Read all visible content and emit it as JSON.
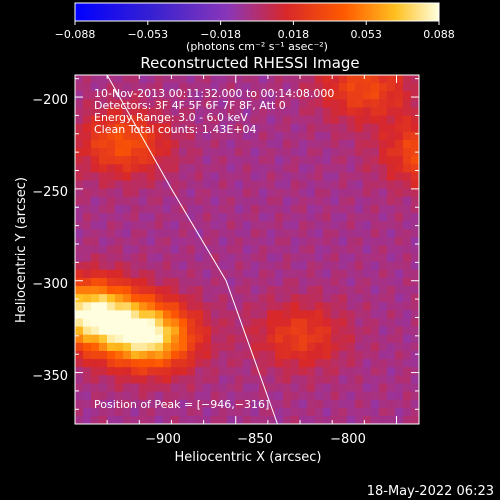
{
  "colorbar": {
    "ticks": [
      "−0.088",
      "−0.053",
      "−0.018",
      "0.018",
      "0.053",
      "0.088"
    ],
    "unit_label": "(photons cm⁻² s⁻¹ asec⁻²)",
    "range": [
      -0.088,
      0.088
    ]
  },
  "chart_data": {
    "type": "heatmap",
    "title": "Reconstructed RHESSI Image",
    "xlabel": "Heliocentric X (arcsec)",
    "ylabel": "Heliocentric Y (arcsec)",
    "xlim": [
      -950,
      -843
    ],
    "ylim": [
      -378,
      -188
    ],
    "x_ticks": [
      -900,
      -850,
      -800
    ],
    "x_tick_labels": [
      "−900",
      "−850",
      "−800"
    ],
    "y_ticks": [
      -200,
      -250,
      -300,
      -350
    ],
    "y_tick_labels": [
      "−200",
      "−250",
      "−300",
      "−350"
    ],
    "annotations": [
      "10-Nov-2013 00:11:32.000 to 00:14:08.000",
      "Detectors: 3F 4F 5F 6F 7F 8F, Att 0",
      "Energy Range: 3.0 - 6.0 keV",
      "Clean     Total counts: 1.43E+04"
    ],
    "peak_label": "Position of Peak = [−946,−316]",
    "peak": [
      -946,
      -316
    ],
    "sources": [
      {
        "x": -945,
        "y": -318,
        "intensity": 0.088
      },
      {
        "x": -927,
        "y": -330,
        "intensity": 0.085
      },
      {
        "x": -802,
        "y": -240,
        "intensity": 0.08
      },
      {
        "x": -935,
        "y": -225,
        "intensity": 0.04
      },
      {
        "x": -860,
        "y": -195,
        "intensity": 0.035
      },
      {
        "x": -805,
        "y": -318,
        "intensity": 0.04
      },
      {
        "x": -840,
        "y": -230,
        "intensity": 0.04
      },
      {
        "x": -880,
        "y": -330,
        "intensity": 0.03
      },
      {
        "x": -818,
        "y": -355,
        "intensity": 0.03
      }
    ],
    "limb_curve": [
      [
        -940,
        -188
      ],
      [
        -920,
        -250
      ],
      [
        -903,
        -300
      ],
      [
        -887,
        -378
      ]
    ]
  },
  "footer_timestamp": "18-May-2022 06:23"
}
